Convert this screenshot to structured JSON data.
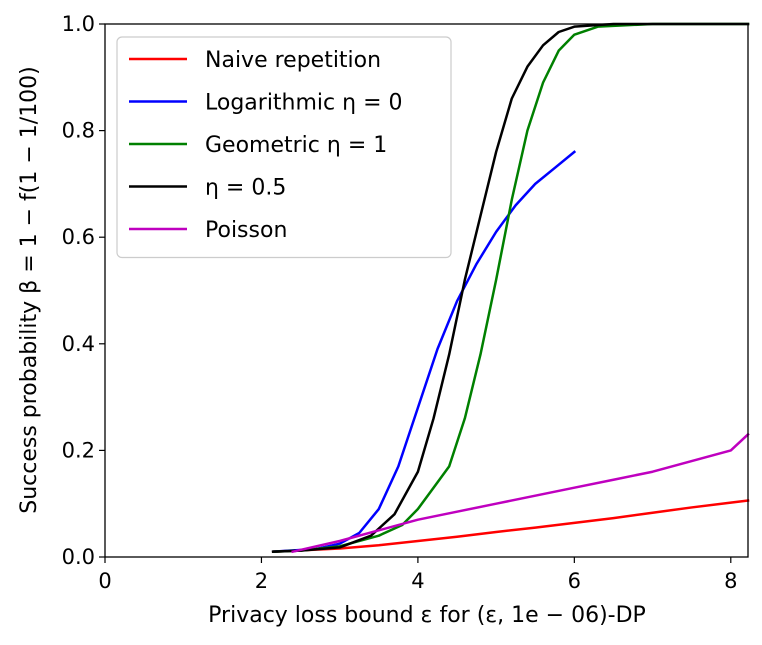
{
  "chart_data": {
    "type": "line",
    "title": "",
    "xlabel": "Privacy loss bound ε for (ε, 1e − 06)-DP",
    "ylabel": "Success probability β = 1 − f(1 − 1/100)",
    "xlim": [
      0,
      8.22
    ],
    "ylim": [
      0,
      1.0
    ],
    "xticks": [
      0,
      2,
      4,
      6,
      8
    ],
    "xtick_labels": [
      "0",
      "2",
      "4",
      "6",
      "8"
    ],
    "yticks": [
      0.0,
      0.2,
      0.4,
      0.6,
      0.8,
      1.0
    ],
    "ytick_labels": [
      "0.0",
      "0.2",
      "0.4",
      "0.6",
      "0.8",
      "1.0"
    ],
    "grid": false,
    "legend_position": "top-left",
    "series": [
      {
        "name": "Naive repetition",
        "color": "#ff0000",
        "points": [
          [
            2.15,
            0.01
          ],
          [
            3.0,
            0.016
          ],
          [
            3.5,
            0.022
          ],
          [
            4.0,
            0.03
          ],
          [
            4.5,
            0.038
          ],
          [
            5.0,
            0.047
          ],
          [
            5.5,
            0.055
          ],
          [
            6.0,
            0.064
          ],
          [
            6.5,
            0.073
          ],
          [
            7.0,
            0.083
          ],
          [
            7.5,
            0.093
          ],
          [
            8.0,
            0.102
          ],
          [
            8.22,
            0.106
          ]
        ]
      },
      {
        "name": "Logarithmic η = 0",
        "color": "#0000ff",
        "points": [
          [
            2.15,
            0.01
          ],
          [
            2.7,
            0.015
          ],
          [
            3.0,
            0.025
          ],
          [
            3.25,
            0.045
          ],
          [
            3.5,
            0.09
          ],
          [
            3.75,
            0.17
          ],
          [
            4.0,
            0.28
          ],
          [
            4.25,
            0.39
          ],
          [
            4.5,
            0.48
          ],
          [
            4.75,
            0.55
          ],
          [
            5.0,
            0.61
          ],
          [
            5.25,
            0.66
          ],
          [
            5.5,
            0.7
          ],
          [
            5.75,
            0.73
          ],
          [
            6.0,
            0.76
          ]
        ]
      },
      {
        "name": "Geometric η = 1",
        "color": "#008000",
        "points": [
          [
            2.15,
            0.01
          ],
          [
            2.5,
            0.012
          ],
          [
            3.0,
            0.02
          ],
          [
            3.5,
            0.04
          ],
          [
            3.8,
            0.06
          ],
          [
            4.0,
            0.09
          ],
          [
            4.2,
            0.13
          ],
          [
            4.4,
            0.17
          ],
          [
            4.6,
            0.26
          ],
          [
            4.8,
            0.38
          ],
          [
            5.0,
            0.52
          ],
          [
            5.2,
            0.67
          ],
          [
            5.4,
            0.8
          ],
          [
            5.6,
            0.89
          ],
          [
            5.8,
            0.95
          ],
          [
            6.0,
            0.98
          ],
          [
            6.3,
            0.995
          ],
          [
            7.0,
            1.0
          ],
          [
            8.22,
            1.0
          ]
        ]
      },
      {
        "name": "η = 0.5",
        "color": "#000000",
        "points": [
          [
            2.15,
            0.01
          ],
          [
            2.5,
            0.012
          ],
          [
            3.0,
            0.018
          ],
          [
            3.4,
            0.04
          ],
          [
            3.7,
            0.08
          ],
          [
            4.0,
            0.16
          ],
          [
            4.2,
            0.26
          ],
          [
            4.4,
            0.38
          ],
          [
            4.6,
            0.52
          ],
          [
            4.8,
            0.64
          ],
          [
            5.0,
            0.76
          ],
          [
            5.2,
            0.86
          ],
          [
            5.4,
            0.92
          ],
          [
            5.6,
            0.96
          ],
          [
            5.8,
            0.985
          ],
          [
            6.0,
            0.995
          ],
          [
            6.5,
            1.0
          ],
          [
            8.22,
            1.0
          ]
        ]
      },
      {
        "name": "Poisson",
        "color": "#bf00bf",
        "points": [
          [
            2.4,
            0.01
          ],
          [
            3.0,
            0.03
          ],
          [
            3.5,
            0.05
          ],
          [
            4.0,
            0.07
          ],
          [
            4.5,
            0.085
          ],
          [
            5.0,
            0.1
          ],
          [
            5.5,
            0.115
          ],
          [
            6.0,
            0.13
          ],
          [
            6.5,
            0.145
          ],
          [
            7.0,
            0.16
          ],
          [
            7.5,
            0.18
          ],
          [
            8.0,
            0.2
          ],
          [
            8.22,
            0.23
          ]
        ]
      }
    ]
  }
}
